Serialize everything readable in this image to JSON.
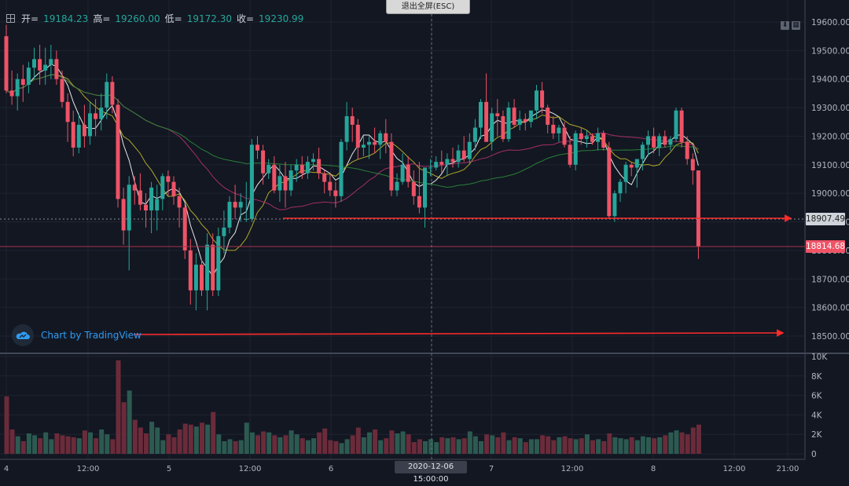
{
  "header": {
    "ohlc": [
      {
        "label": "开=",
        "value": "19184.23"
      },
      {
        "label": "高=",
        "value": "19260.00"
      },
      {
        "label": "低=",
        "value": "19172.30"
      },
      {
        "label": "收=",
        "value": "19230.99"
      }
    ]
  },
  "exit_fullscreen_label": "退出全屏(ESC)",
  "branding": "Chart by TradingView",
  "crosshair_time_label": "2020-12-06 15:00:00",
  "price_tags": {
    "reference": "18907.49",
    "last": "18814.68"
  },
  "colors": {
    "up": "#26a69a",
    "down": "#ef5366",
    "ma_fast": "#ffffff",
    "ma_mid": "#c2b62b",
    "ma_slow_red": "#b5316d",
    "ma_slow_green": "#2e8b3a",
    "arrow": "#ff2b2b",
    "bg": "#121722"
  },
  "chart_data": {
    "type": "candlestick",
    "price_axis": {
      "ticks": [
        "19600.00",
        "19500.00",
        "19400.00",
        "19300.00",
        "19200.00",
        "19100.00",
        "19000.00",
        "18900.00",
        "18800.00",
        "18700.00",
        "18600.00",
        "18500.00"
      ],
      "range": [
        18470,
        19640
      ]
    },
    "volume_axis": {
      "ticks": [
        "10K",
        "8K",
        "6K",
        "4K",
        "2K",
        "0"
      ],
      "range": [
        0,
        10000
      ]
    },
    "time_axis": {
      "ticks": [
        "4",
        "12:00",
        "5",
        "12:00",
        "6",
        "12:00",
        "7",
        "12:00",
        "8",
        "12:00",
        "21:00"
      ]
    },
    "series": [
      {
        "name": "price",
        "values": [
          [
            19550,
            19590,
            19350,
            19360
          ],
          [
            19360,
            19430,
            19310,
            19340
          ],
          [
            19340,
            19420,
            19290,
            19400
          ],
          [
            19400,
            19450,
            19320,
            19380
          ],
          [
            19380,
            19460,
            19350,
            19440
          ],
          [
            19440,
            19510,
            19400,
            19470
          ],
          [
            19470,
            19520,
            19380,
            19430
          ],
          [
            19430,
            19510,
            19380,
            19450
          ],
          [
            19450,
            19520,
            19400,
            19470
          ],
          [
            19470,
            19500,
            19380,
            19400
          ],
          [
            19400,
            19430,
            19300,
            19320
          ],
          [
            19320,
            19350,
            19180,
            19250
          ],
          [
            19250,
            19290,
            19130,
            19160
          ],
          [
            19160,
            19280,
            19140,
            19240
          ],
          [
            19240,
            19310,
            19160,
            19200
          ],
          [
            19200,
            19320,
            19170,
            19280
          ],
          [
            19280,
            19330,
            19200,
            19260
          ],
          [
            19260,
            19350,
            19220,
            19300
          ],
          [
            19300,
            19420,
            19260,
            19390
          ],
          [
            19390,
            19410,
            19280,
            19310
          ],
          [
            19310,
            19330,
            18950,
            18980
          ],
          [
            18980,
            19020,
            18820,
            18870
          ],
          [
            18870,
            19060,
            18730,
            19030
          ],
          [
            19030,
            19060,
            18960,
            19010
          ],
          [
            19010,
            19070,
            18940,
            18960
          ],
          [
            18960,
            19000,
            18880,
            18940
          ],
          [
            18940,
            19040,
            18860,
            19020
          ],
          [
            18940,
            19030,
            18870,
            18980
          ],
          [
            18980,
            19070,
            18940,
            19060
          ],
          [
            19060,
            19080,
            18990,
            19040
          ],
          [
            19040,
            19060,
            18960,
            18990
          ],
          [
            18990,
            19020,
            18880,
            18950
          ],
          [
            18950,
            18960,
            18770,
            18800
          ],
          [
            18800,
            18840,
            18610,
            18660
          ],
          [
            18660,
            18790,
            18590,
            18750
          ],
          [
            18750,
            18770,
            18640,
            18660
          ],
          [
            18660,
            18860,
            18590,
            18820
          ],
          [
            18820,
            18860,
            18640,
            18660
          ],
          [
            18660,
            18880,
            18640,
            18850
          ],
          [
            18850,
            18940,
            18790,
            18880
          ],
          [
            18880,
            18990,
            18860,
            18970
          ],
          [
            18970,
            19030,
            18910,
            18950
          ],
          [
            18950,
            19000,
            18900,
            18970
          ],
          [
            18910,
            19040,
            18900,
            18910
          ],
          [
            18910,
            19190,
            18900,
            19170
          ],
          [
            19170,
            19200,
            19120,
            19150
          ],
          [
            19150,
            19170,
            19030,
            19070
          ],
          [
            19070,
            19120,
            19050,
            19100
          ],
          [
            19100,
            19130,
            19000,
            19010
          ],
          [
            19010,
            19100,
            18970,
            19060
          ],
          [
            19060,
            19110,
            18950,
            19010
          ],
          [
            19010,
            19100,
            18990,
            19080
          ],
          [
            19080,
            19120,
            19040,
            19100
          ],
          [
            19100,
            19130,
            19050,
            19070
          ],
          [
            19070,
            19130,
            19050,
            19110
          ],
          [
            19110,
            19140,
            19080,
            19120
          ],
          [
            19120,
            19160,
            19050,
            19070
          ],
          [
            19070,
            19080,
            19000,
            19040
          ],
          [
            19040,
            19070,
            18990,
            19010
          ],
          [
            19010,
            19040,
            18950,
            18990
          ],
          [
            18990,
            19190,
            18970,
            19180
          ],
          [
            19180,
            19320,
            19150,
            19270
          ],
          [
            19270,
            19300,
            19180,
            19240
          ],
          [
            19240,
            19260,
            19120,
            19160
          ],
          [
            19160,
            19200,
            19130,
            19170
          ],
          [
            19170,
            19200,
            19120,
            19180
          ],
          [
            19180,
            19230,
            19140,
            19170
          ],
          [
            19170,
            19220,
            19120,
            19210
          ],
          [
            19210,
            19260,
            19140,
            19180
          ],
          [
            19180,
            19210,
            18990,
            19010
          ],
          [
            19010,
            19070,
            18990,
            19040
          ],
          [
            19040,
            19140,
            19030,
            19100
          ],
          [
            19100,
            19130,
            19020,
            19040
          ],
          [
            19040,
            19080,
            18960,
            18990
          ],
          [
            18990,
            19110,
            18930,
            18950
          ],
          [
            18950,
            19090,
            18880,
            19090
          ],
          [
            19090,
            19120,
            19060,
            19090
          ],
          [
            19090,
            19130,
            19080,
            19110
          ],
          [
            19110,
            19150,
            19070,
            19100
          ],
          [
            19100,
            19140,
            19060,
            19120
          ],
          [
            19120,
            19160,
            19090,
            19110
          ],
          [
            19110,
            19170,
            19090,
            19150
          ],
          [
            19150,
            19200,
            19110,
            19120
          ],
          [
            19120,
            19210,
            19100,
            19180
          ],
          [
            19180,
            19260,
            19150,
            19230
          ],
          [
            19230,
            19330,
            19190,
            19320
          ],
          [
            19320,
            19420,
            19280,
            19180
          ],
          [
            19180,
            19300,
            19150,
            19280
          ],
          [
            19280,
            19330,
            19200,
            19270
          ],
          [
            19270,
            19290,
            19180,
            19190
          ],
          [
            19190,
            19320,
            19180,
            19300
          ],
          [
            19300,
            19330,
            19230,
            19240
          ],
          [
            19240,
            19290,
            19220,
            19260
          ],
          [
            19260,
            19280,
            19220,
            19250
          ],
          [
            19250,
            19290,
            19230,
            19290
          ],
          [
            19290,
            19380,
            19260,
            19360
          ],
          [
            19360,
            19390,
            19280,
            19300
          ],
          [
            19300,
            19310,
            19210,
            19240
          ],
          [
            19240,
            19270,
            19190,
            19210
          ],
          [
            19210,
            19240,
            19180,
            19230
          ],
          [
            19230,
            19250,
            19160,
            19170
          ],
          [
            19170,
            19200,
            19090,
            19100
          ],
          [
            19100,
            19220,
            19080,
            19210
          ],
          [
            19210,
            19230,
            19170,
            19190
          ],
          [
            19190,
            19220,
            19160,
            19200
          ],
          [
            19200,
            19210,
            19170,
            19180
          ],
          [
            19180,
            19230,
            19150,
            19210
          ],
          [
            19210,
            19220,
            19150,
            19160
          ],
          [
            19160,
            19180,
            18910,
            18920
          ],
          [
            18920,
            19010,
            18900,
            19000
          ],
          [
            19000,
            19050,
            18970,
            19040
          ],
          [
            19040,
            19110,
            19000,
            19100
          ],
          [
            19100,
            19110,
            19060,
            19090
          ],
          [
            19090,
            19120,
            19020,
            19120
          ],
          [
            19120,
            19180,
            19080,
            19170
          ],
          [
            19170,
            19220,
            19130,
            19200
          ],
          [
            19200,
            19230,
            19140,
            19160
          ],
          [
            19160,
            19210,
            19130,
            19200
          ],
          [
            19200,
            19220,
            19160,
            19170
          ],
          [
            19170,
            19200,
            19150,
            19190
          ],
          [
            19190,
            19300,
            19180,
            19290
          ],
          [
            19290,
            19300,
            19160,
            19180
          ],
          [
            19180,
            19200,
            19100,
            19120
          ],
          [
            19120,
            19140,
            19030,
            19080
          ],
          [
            19080,
            19080,
            18770,
            18814.68
          ]
        ]
      },
      {
        "name": "volume",
        "values": [
          5900,
          2500,
          1800,
          1300,
          2100,
          1900,
          1600,
          2200,
          1500,
          2100,
          1900,
          1800,
          1700,
          1600,
          2400,
          2200,
          1600,
          2500,
          2000,
          1500,
          9600,
          5300,
          6500,
          3500,
          2700,
          2100,
          3300,
          2700,
          1400,
          2000,
          1700,
          2500,
          3100,
          3000,
          2800,
          3200,
          3000,
          4300,
          2000,
          1300,
          1500,
          1300,
          1400,
          3200,
          2200,
          1900,
          2300,
          2200,
          1900,
          1700,
          1900,
          2400,
          2000,
          1600,
          1400,
          1600,
          2200,
          2600,
          1400,
          1300,
          1100,
          1500,
          1900,
          2700,
          1700,
          2200,
          2500,
          1400,
          1600,
          2400,
          2100,
          2300,
          2000,
          1200,
          1500,
          1300,
          1500,
          1200,
          1700,
          1600,
          1700,
          1500,
          1600,
          2300,
          1800,
          1300,
          2000,
          1900,
          1700,
          2200,
          1400,
          1700,
          1600,
          1200,
          1500,
          1500,
          1900,
          1800,
          1400,
          1700,
          1800,
          1600,
          1500,
          1600,
          2000,
          1400,
          1500,
          1300,
          2100,
          1700,
          1600,
          1500,
          1700,
          1400,
          1800,
          1700,
          1600,
          1700,
          1900,
          2200,
          2400,
          2200,
          2000,
          2700,
          3000
        ]
      }
    ]
  }
}
